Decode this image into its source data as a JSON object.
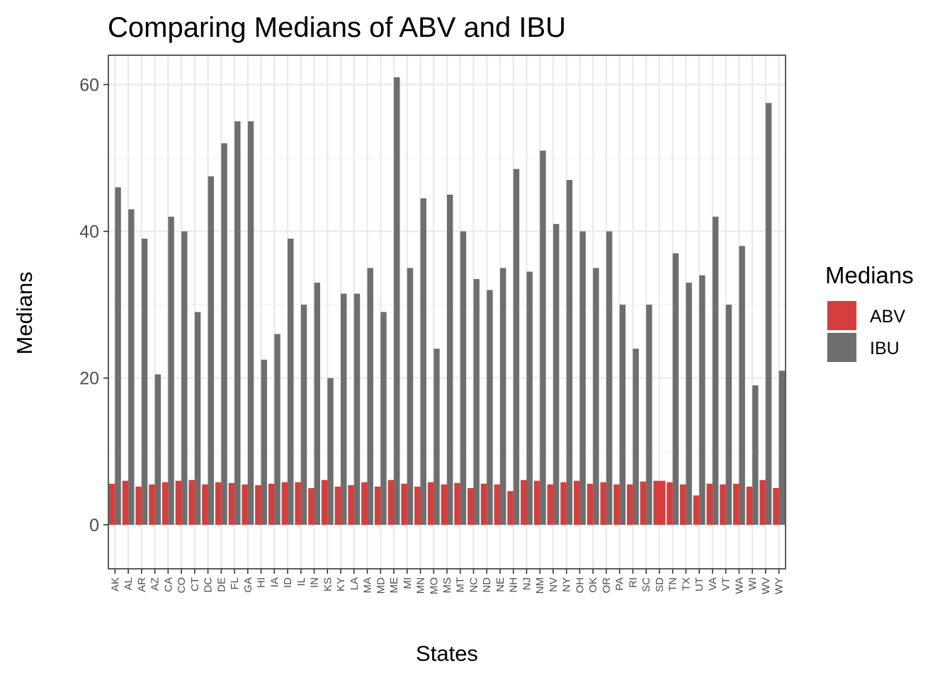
{
  "chart_data": {
    "type": "bar",
    "title": "Comparing Medians of ABV and IBU",
    "xlabel": "States",
    "ylabel": "Medians",
    "ylim": [
      -6,
      64
    ],
    "yticks": [
      0,
      20,
      40,
      60
    ],
    "grid": true,
    "legend_position": "right",
    "legend_title": "Medians",
    "categories": [
      "AK",
      "AL",
      "AR",
      "AZ",
      "CA",
      "CO",
      "CT",
      "DC",
      "DE",
      "FL",
      "GA",
      "HI",
      "IA",
      "ID",
      "IL",
      "IN",
      "KS",
      "KY",
      "LA",
      "MA",
      "MD",
      "ME",
      "MI",
      "MN",
      "MO",
      "MS",
      "MT",
      "NC",
      "ND",
      "NE",
      "NH",
      "NJ",
      "NM",
      "NV",
      "NY",
      "OH",
      "OK",
      "OR",
      "PA",
      "RI",
      "SC",
      "SD",
      "TN",
      "TX",
      "UT",
      "VA",
      "VT",
      "WA",
      "WI",
      "WV",
      "WY"
    ],
    "series": [
      {
        "name": "ABV",
        "color": "#d53e3e",
        "values": [
          5.6,
          6.0,
          5.2,
          5.5,
          5.8,
          6.0,
          6.1,
          5.5,
          5.8,
          5.7,
          5.5,
          5.4,
          5.6,
          5.8,
          5.8,
          5.0,
          6.1,
          5.2,
          5.4,
          5.8,
          5.2,
          6.1,
          5.6,
          5.2,
          5.8,
          5.5,
          5.7,
          5.0,
          5.6,
          5.5,
          4.6,
          6.1,
          6.0,
          5.5,
          5.8,
          6.0,
          5.6,
          5.8,
          5.5,
          5.5,
          5.9,
          6.0,
          5.8,
          5.5,
          4.0,
          5.6,
          5.5,
          5.6,
          5.2,
          6.1,
          5.0
        ]
      },
      {
        "name": "IBU",
        "color": "#6e6e6e",
        "values": [
          46,
          43,
          39,
          20.5,
          42,
          40,
          29,
          47.5,
          52,
          55,
          55,
          22.5,
          26,
          39,
          30,
          33,
          20,
          31.5,
          31.5,
          35,
          29,
          61,
          35,
          44.5,
          24,
          45,
          40,
          33.5,
          32,
          35,
          48.5,
          34.5,
          51,
          41,
          47,
          40,
          35,
          40,
          30,
          24,
          30,
          null,
          37,
          33,
          34,
          42,
          30,
          38,
          19,
          57.5,
          21
        ]
      }
    ]
  }
}
